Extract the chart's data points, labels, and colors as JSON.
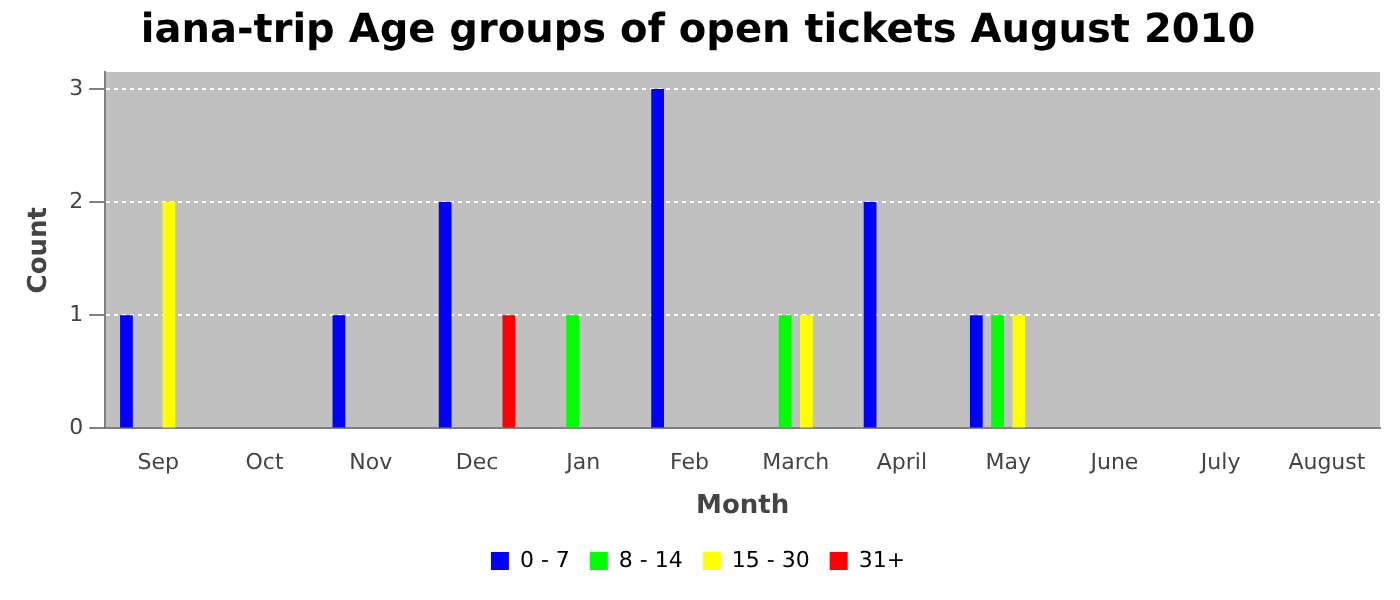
{
  "chart_data": {
    "type": "bar",
    "title": "iana-trip Age groups of open tickets August 2010",
    "xlabel": "Month",
    "ylabel": "Count",
    "categories": [
      "Sep",
      "Oct",
      "Nov",
      "Dec",
      "Jan",
      "Feb",
      "March",
      "April",
      "May",
      "June",
      "July",
      "August"
    ],
    "series": [
      {
        "name": "0 - 7",
        "color": "#0000ff",
        "values": [
          1,
          0,
          1,
          2,
          0,
          3,
          0,
          2,
          1,
          0,
          0,
          0
        ]
      },
      {
        "name": "8 - 14",
        "color": "#00ff00",
        "values": [
          0,
          0,
          0,
          0,
          1,
          0,
          1,
          0,
          1,
          0,
          0,
          0
        ]
      },
      {
        "name": "15 - 30",
        "color": "#ffff00",
        "values": [
          2,
          0,
          0,
          0,
          0,
          0,
          1,
          0,
          1,
          0,
          0,
          0
        ]
      },
      {
        "name": "31+",
        "color": "#ff0000",
        "values": [
          0,
          0,
          0,
          1,
          0,
          0,
          0,
          0,
          0,
          0,
          0,
          0
        ]
      }
    ],
    "ylim": [
      0,
      3.15
    ],
    "yticks": [
      0,
      1,
      2,
      3
    ],
    "grid": "y",
    "legend": "bottom"
  }
}
